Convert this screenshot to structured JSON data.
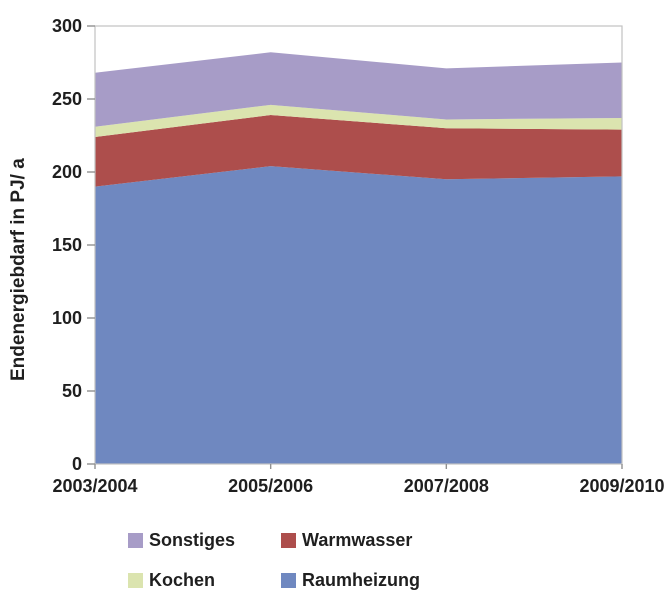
{
  "chart_data": {
    "type": "area",
    "stacked": true,
    "title": "",
    "x": [
      "2003/2004",
      "2005/2006",
      "2007/2008",
      "2009/2010"
    ],
    "series": [
      {
        "name": "Raumheizung",
        "color": "#6f88c0",
        "values": [
          190,
          204,
          195,
          197
        ]
      },
      {
        "name": "Warmwasser",
        "color": "#ad4e4c",
        "values": [
          34,
          35,
          35,
          32
        ]
      },
      {
        "name": "Kochen",
        "color": "#dbe4af",
        "values": [
          7,
          7,
          6,
          8
        ]
      },
      {
        "name": "Sonstiges",
        "color": "#a79cc7",
        "values": [
          37,
          36,
          35,
          38
        ]
      }
    ],
    "ylabel": "Endenergiebdarf in PJ/ a",
    "xlabel": "",
    "ylim": [
      0,
      300
    ],
    "yticks": [
      0,
      50,
      100,
      150,
      200,
      250,
      300
    ],
    "grid": false,
    "legend_position": "bottom",
    "legend_order": [
      "Sonstiges",
      "Warmwasser",
      "Kochen",
      "Raumheizung"
    ],
    "axis_color": "#c2c2c2",
    "tick_color": "#909090",
    "text_color": "#1f1f1f"
  }
}
